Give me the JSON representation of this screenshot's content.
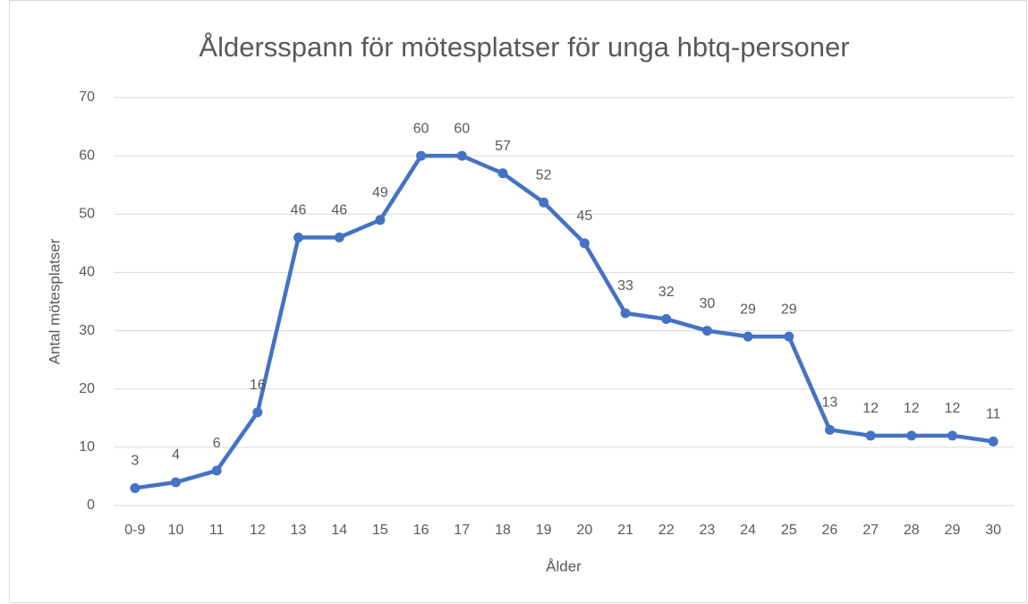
{
  "chart_data": {
    "type": "line",
    "title": "Åldersspann för mötesplatser för unga hbtq-personer",
    "x_label": "Ålder",
    "y_label": "Antal mötesplatser",
    "categories": [
      "0-9",
      "10",
      "11",
      "12",
      "13",
      "14",
      "15",
      "16",
      "17",
      "18",
      "19",
      "20",
      "21",
      "22",
      "23",
      "24",
      "25",
      "26",
      "27",
      "28",
      "29",
      "30"
    ],
    "values": [
      3,
      4,
      6,
      16,
      46,
      46,
      49,
      60,
      60,
      57,
      52,
      45,
      33,
      32,
      30,
      29,
      29,
      13,
      12,
      12,
      12,
      11
    ],
    "color": "#4472c4",
    "ylim": [
      0,
      70
    ],
    "yticks": [
      0,
      10,
      20,
      30,
      40,
      50,
      60,
      70
    ],
    "grid": true
  }
}
